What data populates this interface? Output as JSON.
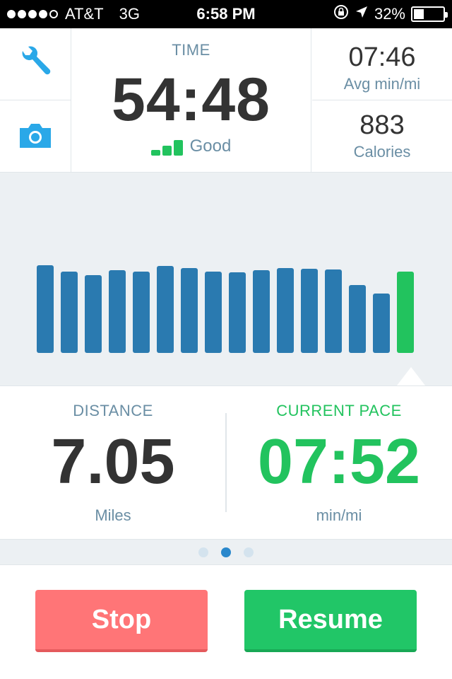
{
  "status_bar": {
    "carrier": "AT&T",
    "network": "3G",
    "time": "6:58 PM",
    "battery": "32%",
    "battery_level": 0.32,
    "signal_dots": [
      true,
      true,
      true,
      true,
      false
    ]
  },
  "top_panel": {
    "time_label": "TIME",
    "time_value": "54:48",
    "signal_label": "Good",
    "signal_strength": 3,
    "avg_value": "07:46",
    "avg_label": "Avg min/mi",
    "calories_value": "883",
    "calories_label": "Calories"
  },
  "icons": {
    "settings": "wrench-icon",
    "camera": "camera-icon"
  },
  "colors": {
    "accent_blue": "#2a7ab0",
    "accent_green": "#22c35e",
    "label_blue": "#6a8ea4",
    "stop_red": "#ff7577"
  },
  "chart_data": {
    "type": "bar",
    "values": [
      124,
      115,
      110,
      117,
      115,
      123,
      120,
      115,
      114,
      117,
      120,
      119,
      118,
      96,
      84,
      115
    ],
    "highlight_last": true
  },
  "distance": {
    "label": "DISTANCE",
    "value": "7.05",
    "unit": "Miles"
  },
  "current_pace": {
    "label": "CURRENT PACE",
    "value": "07:52",
    "unit": "min/mi"
  },
  "pager": {
    "count": 3,
    "active": 1
  },
  "buttons": {
    "stop": "Stop",
    "resume": "Resume"
  }
}
